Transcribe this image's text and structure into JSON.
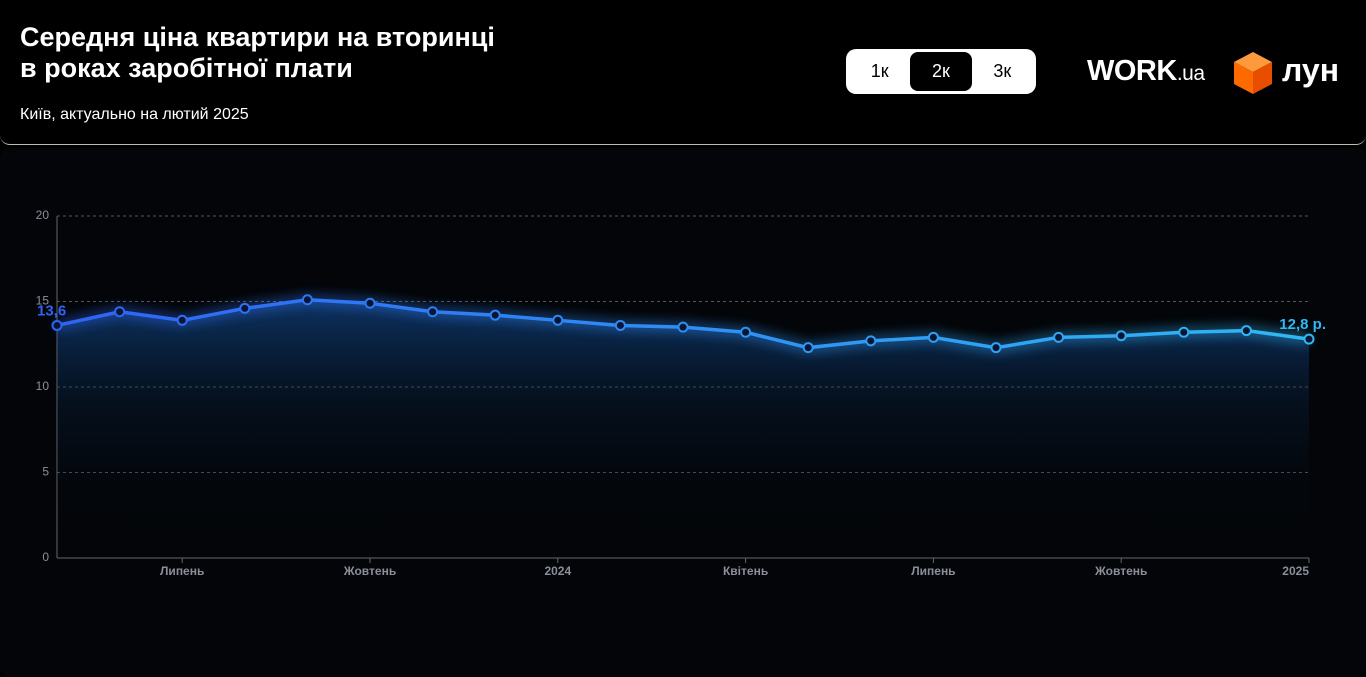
{
  "chart_data": {
    "type": "line",
    "title": [
      "Середня ціна квартири на вторинці",
      "в роках заробітної плати"
    ],
    "subtitle": "Київ, актуально на лютий 2025",
    "categories": [
      null,
      null,
      "Липень",
      null,
      null,
      "Жовтень",
      null,
      null,
      "2024",
      null,
      null,
      "Квітень",
      null,
      null,
      "Липень",
      null,
      null,
      "Жовтень",
      null,
      null,
      "2025"
    ],
    "series": [
      {
        "colors": [
          "#2f63f5",
          "#2fb8f5"
        ],
        "values": [
          13.6,
          14.4,
          13.9,
          14.6,
          15.1,
          14.9,
          14.4,
          14.2,
          13.9,
          13.6,
          13.5,
          13.2,
          12.3,
          12.7,
          12.9,
          12.3,
          12.9,
          13.0,
          13.2,
          13.3,
          12.8
        ],
        "value_labels": [
          "13,6",
          null,
          null,
          null,
          null,
          null,
          null,
          null,
          null,
          null,
          null,
          null,
          null,
          null,
          null,
          null,
          null,
          null,
          null,
          null,
          "12,8 р."
        ]
      }
    ],
    "ylim": [
      0,
      20
    ],
    "yticks": [
      0,
      5,
      10,
      15,
      20
    ],
    "grid": true
  },
  "tabs": [
    "1к",
    "2к",
    "3к"
  ],
  "active_tab": 1,
  "logos": {
    "work": "WORK",
    "work_suffix": ".ua",
    "lun": "лун"
  }
}
